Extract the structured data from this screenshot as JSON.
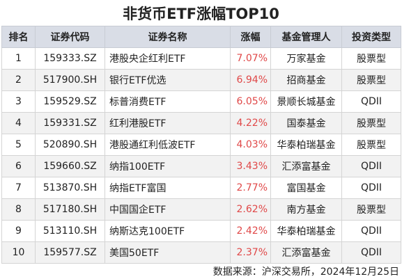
{
  "title": "非货币ETF涨幅TOP10",
  "table": {
    "header": [
      "排名",
      "证券代码",
      "证券名称",
      "涨幅",
      "基金管理人",
      "投资类型"
    ],
    "rows": [
      [
        "1",
        "159333.SZ",
        "港股央企红利ETF",
        "7.07%",
        "万家基金",
        "股票型"
      ],
      [
        "2",
        "517900.SH",
        "银行ETF优选",
        "6.94%",
        "招商基金",
        "股票型"
      ],
      [
        "3",
        "159529.SZ",
        "标普消费ETF",
        "6.05%",
        "景顺长城基金",
        "QDII"
      ],
      [
        "4",
        "159331.SZ",
        "红利港股ETF",
        "4.22%",
        "国泰基金",
        "股票型"
      ],
      [
        "5",
        "520890.SH",
        "港股通红利低波ETF",
        "4.03%",
        "华泰柏瑞基金",
        "股票型"
      ],
      [
        "6",
        "159660.SZ",
        "纳指100ETF",
        "3.43%",
        "汇添富基金",
        "QDII"
      ],
      [
        "7",
        "513870.SH",
        "纳指ETF富国",
        "2.77%",
        "富国基金",
        "QDII"
      ],
      [
        "8",
        "517180.SH",
        "中国国企ETF",
        "2.62%",
        "南方基金",
        "股票型"
      ],
      [
        "9",
        "513110.SH",
        "纳斯达克100ETF",
        "2.42%",
        "华泰柏瑞基金",
        "QDII"
      ],
      [
        "10",
        "159577.SZ",
        "美国50ETF",
        "2.37%",
        "汇添富基金",
        "QDII"
      ]
    ]
  },
  "source": "数据来源：沪深交易所，2024年12月25日"
}
